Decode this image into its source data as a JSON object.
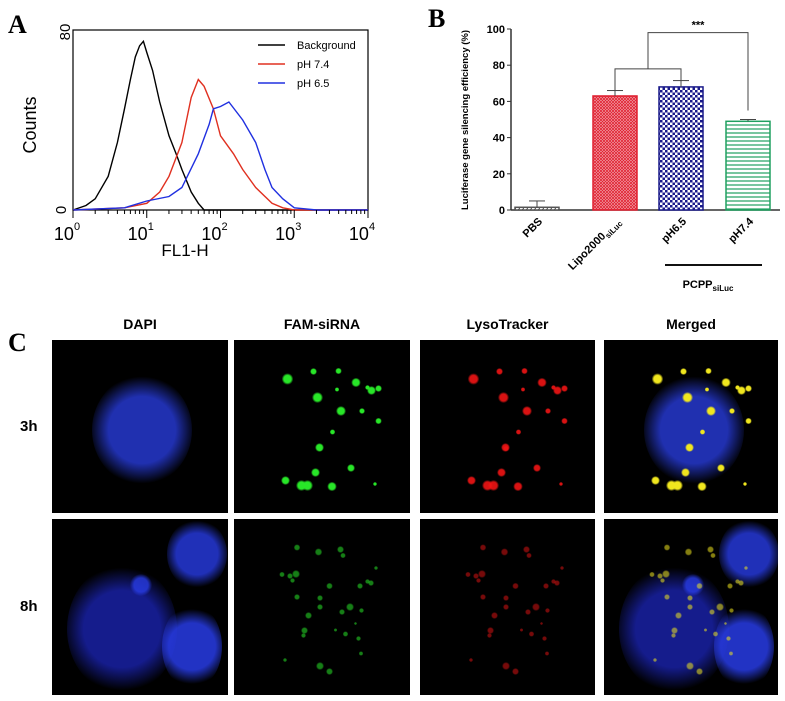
{
  "panels": {
    "a": "A",
    "b": "B",
    "c": "C"
  },
  "chart_data": [
    {
      "type": "line",
      "panel": "A",
      "xlabel": "FL1-H",
      "ylabel": "Counts",
      "xscale": "log",
      "xlim": [
        1,
        10000
      ],
      "ylim": [
        0,
        80
      ],
      "xticks": [
        "10^0",
        "10^1",
        "10^2",
        "10^3",
        "10^4"
      ],
      "yticks": [
        "0",
        "80"
      ],
      "legend": "top-right",
      "series": [
        {
          "name": "Background",
          "color": "#000000",
          "points": [
            [
              1,
              0
            ],
            [
              1.5,
              2
            ],
            [
              2,
              5
            ],
            [
              3,
              15
            ],
            [
              4,
              30
            ],
            [
              5,
              45
            ],
            [
              6,
              58
            ],
            [
              7,
              68
            ],
            [
              8,
              73
            ],
            [
              9,
              75
            ],
            [
              10,
              70
            ],
            [
              12,
              62
            ],
            [
              15,
              48
            ],
            [
              20,
              33
            ],
            [
              25,
              25
            ],
            [
              30,
              18
            ],
            [
              40,
              8
            ],
            [
              50,
              3
            ],
            [
              60,
              0
            ],
            [
              10000,
              0
            ]
          ]
        },
        {
          "name": "pH 7.4",
          "color": "#e03020",
          "points": [
            [
              1,
              0
            ],
            [
              5,
              1
            ],
            [
              10,
              3
            ],
            [
              15,
              8
            ],
            [
              20,
              15
            ],
            [
              30,
              30
            ],
            [
              40,
              50
            ],
            [
              50,
              58
            ],
            [
              60,
              55
            ],
            [
              80,
              45
            ],
            [
              100,
              33
            ],
            [
              150,
              25
            ],
            [
              200,
              18
            ],
            [
              300,
              10
            ],
            [
              500,
              3
            ],
            [
              700,
              1
            ],
            [
              1000,
              0
            ],
            [
              10000,
              0
            ]
          ]
        },
        {
          "name": "pH 6.5",
          "color": "#2030e0",
          "points": [
            [
              1,
              0
            ],
            [
              5,
              1
            ],
            [
              10,
              4
            ],
            [
              20,
              6
            ],
            [
              30,
              10
            ],
            [
              50,
              25
            ],
            [
              70,
              38
            ],
            [
              80,
              45
            ],
            [
              100,
              46
            ],
            [
              130,
              48
            ],
            [
              200,
              40
            ],
            [
              300,
              30
            ],
            [
              400,
              18
            ],
            [
              500,
              10
            ],
            [
              700,
              5
            ],
            [
              1000,
              1
            ],
            [
              2000,
              0
            ],
            [
              10000,
              0
            ]
          ]
        }
      ]
    },
    {
      "type": "bar",
      "panel": "B",
      "ylabel": "Luciferase gene silencing efficiency (%)",
      "ylim": [
        0,
        100
      ],
      "yticks": [
        "0",
        "20",
        "40",
        "60",
        "80",
        "100"
      ],
      "categories": [
        "PBS",
        "Lipo2000",
        "pH6.5",
        "pH7.4"
      ],
      "category_subscripts": [
        "",
        "siLuc",
        "",
        ""
      ],
      "values": [
        1.5,
        63,
        68,
        49
      ],
      "errors": [
        3.5,
        3,
        3.5,
        1
      ],
      "colors": [
        "#555555",
        "#e02030",
        "#1a1a8a",
        "#20a060"
      ],
      "group_label": "PCPP",
      "group_subscript": "siLuc",
      "significance": "***"
    }
  ],
  "microscopy": {
    "columns": [
      "DAPI",
      "FAM-siRNA",
      "LysoTracker",
      "Merged"
    ],
    "rows": [
      "3h",
      "8h"
    ]
  }
}
